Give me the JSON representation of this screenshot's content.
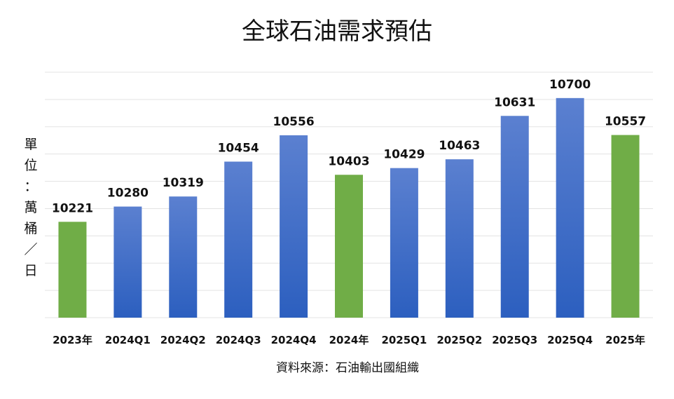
{
  "chart_data": {
    "type": "bar",
    "title": "全球石油需求預估",
    "ylabel": "單位：萬桶／日",
    "xlabel": "",
    "source": "資料來源：石油輸出國組織",
    "ylim": [
      9850,
      10800
    ],
    "grid": true,
    "legend": "none",
    "categories": [
      "2023年",
      "2024Q1",
      "2024Q2",
      "2024Q3",
      "2024Q4",
      "2024年",
      "2025Q1",
      "2025Q2",
      "2025Q3",
      "2025Q4",
      "2025年"
    ],
    "values": [
      10221,
      10280,
      10319,
      10454,
      10556,
      10403,
      10429,
      10463,
      10631,
      10700,
      10557
    ],
    "bar_kind": [
      "annual",
      "quarterly",
      "quarterly",
      "quarterly",
      "quarterly",
      "annual",
      "quarterly",
      "quarterly",
      "quarterly",
      "quarterly",
      "annual"
    ],
    "colors": {
      "annual": "#70ad47",
      "quarterly_top": "#5b80d0",
      "quarterly_bottom": "#2c5fbf"
    }
  }
}
